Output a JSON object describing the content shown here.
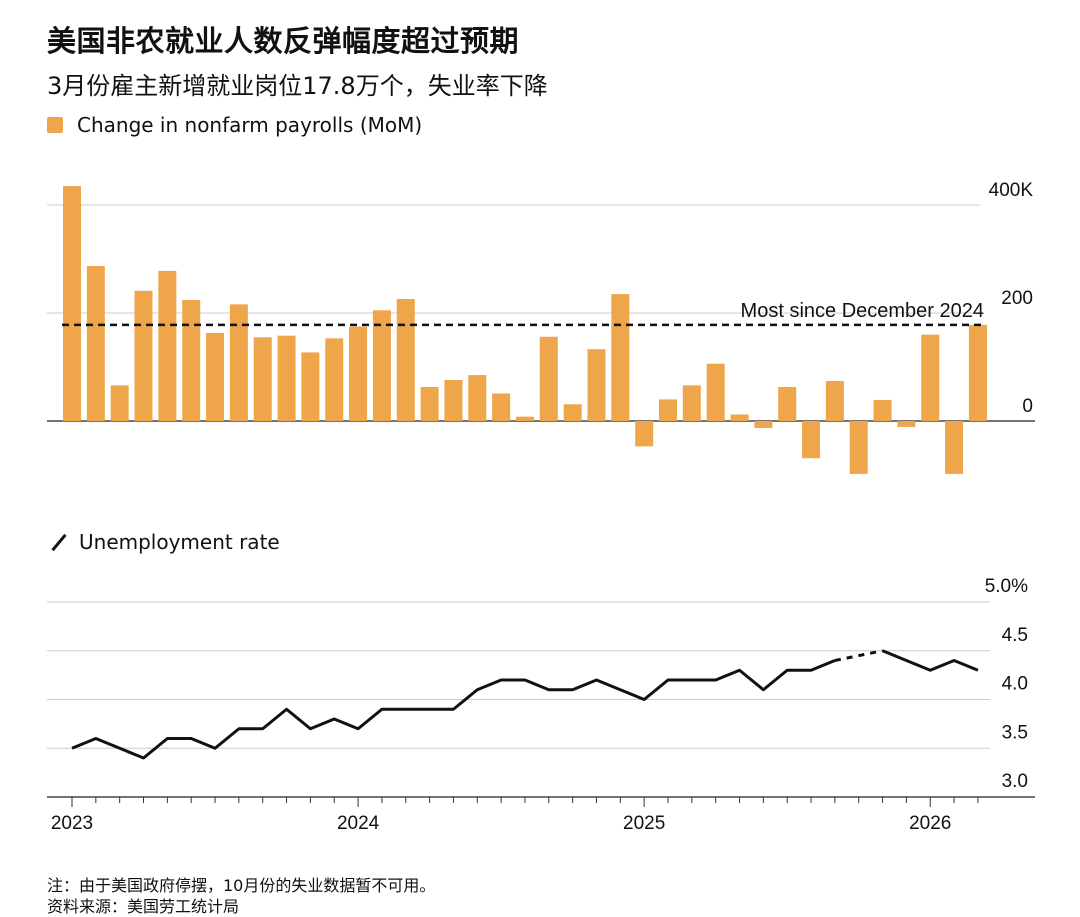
{
  "title": "美国非农就业人数反弹幅度超过预期",
  "subtitle": "3月份雇主新增就业岗位17.8万个，失业率下降",
  "legend_bar": "Change in nonfarm payrolls (MoM)",
  "legend_line": "Unemployment rate",
  "reference_label": "Most since December 2024",
  "note": "注：由于美国政府停摆，10月份的失业数据暂不可用。",
  "source": "资料来源：美国劳工统计局",
  "colors": {
    "bar": "#efa64a",
    "line": "#111111",
    "grid": "#cccccc"
  },
  "chart_data": [
    {
      "type": "bar",
      "title": "Change in nonfarm payrolls (MoM)",
      "unit": "thousands",
      "ylim": [
        -100,
        440
      ],
      "yticks": [
        0,
        200,
        400
      ],
      "ytick_labels": [
        "0",
        "200",
        "400K"
      ],
      "reference_line": {
        "value": 178,
        "label": "Most since December 2024"
      },
      "x_start": "2023-01",
      "values": [
        435,
        287,
        66,
        241,
        278,
        224,
        163,
        216,
        155,
        158,
        127,
        153,
        175,
        205,
        226,
        63,
        76,
        85,
        51,
        8,
        156,
        31,
        133,
        235,
        -47,
        40,
        66,
        106,
        12,
        -13,
        63,
        -69,
        74,
        -98,
        39,
        -11,
        160,
        -98,
        178
      ]
    },
    {
      "type": "line",
      "title": "Unemployment rate",
      "unit": "%",
      "ylim": [
        3.0,
        5.0
      ],
      "yticks": [
        3.0,
        3.5,
        4.0,
        4.5,
        5.0
      ],
      "ytick_labels": [
        "3.0",
        "3.5",
        "4.0",
        "4.5",
        "5.0%"
      ],
      "x_start": "2023-01",
      "values": [
        3.5,
        3.6,
        3.5,
        3.4,
        3.6,
        3.6,
        3.5,
        3.7,
        3.7,
        3.9,
        3.7,
        3.8,
        3.7,
        3.9,
        3.9,
        3.9,
        3.9,
        4.1,
        4.2,
        4.2,
        4.1,
        4.1,
        4.2,
        4.1,
        4.0,
        4.2,
        4.2,
        4.2,
        4.3,
        4.1,
        4.3,
        4.3,
        4.4,
        null,
        4.5,
        4.4,
        4.3,
        4.4,
        4.3
      ],
      "missing": [
        "2025-10"
      ],
      "x_tick_labels": [
        "2023",
        "2024",
        "2025",
        "2026"
      ]
    }
  ]
}
